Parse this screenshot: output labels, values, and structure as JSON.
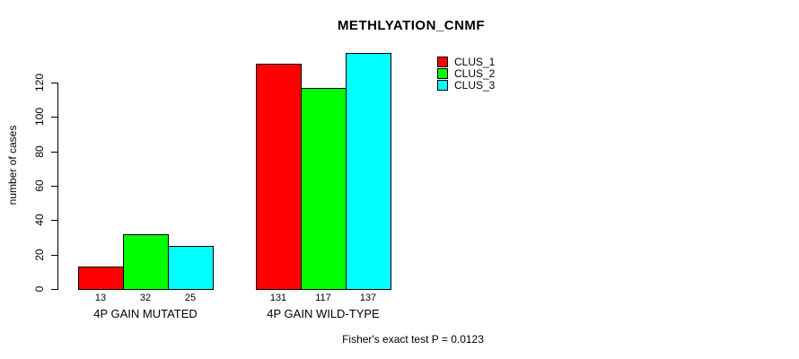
{
  "chart_data": {
    "type": "bar",
    "title": "METHLYATION_CNMF",
    "ylabel": "number of cases",
    "xlabel": "",
    "categories": [
      "4P GAIN MUTATED",
      "4P GAIN WILD-TYPE"
    ],
    "series": [
      {
        "name": "CLUS_1",
        "color": "#ff0000",
        "values": [
          13,
          131
        ]
      },
      {
        "name": "CLUS_2",
        "color": "#00ff00",
        "values": [
          32,
          117
        ]
      },
      {
        "name": "CLUS_3",
        "color": "#00ffff",
        "values": [
          25,
          137
        ]
      }
    ],
    "bar_value_labels": [
      [
        "13",
        "32",
        "25"
      ],
      [
        "131",
        "117",
        "137"
      ]
    ],
    "yticks": [
      0,
      20,
      40,
      60,
      80,
      100,
      120
    ],
    "ylim": [
      0,
      140
    ],
    "grid": false,
    "legend_position": "top-right",
    "annotation": "Fisher's exact test P = 0.0123"
  }
}
